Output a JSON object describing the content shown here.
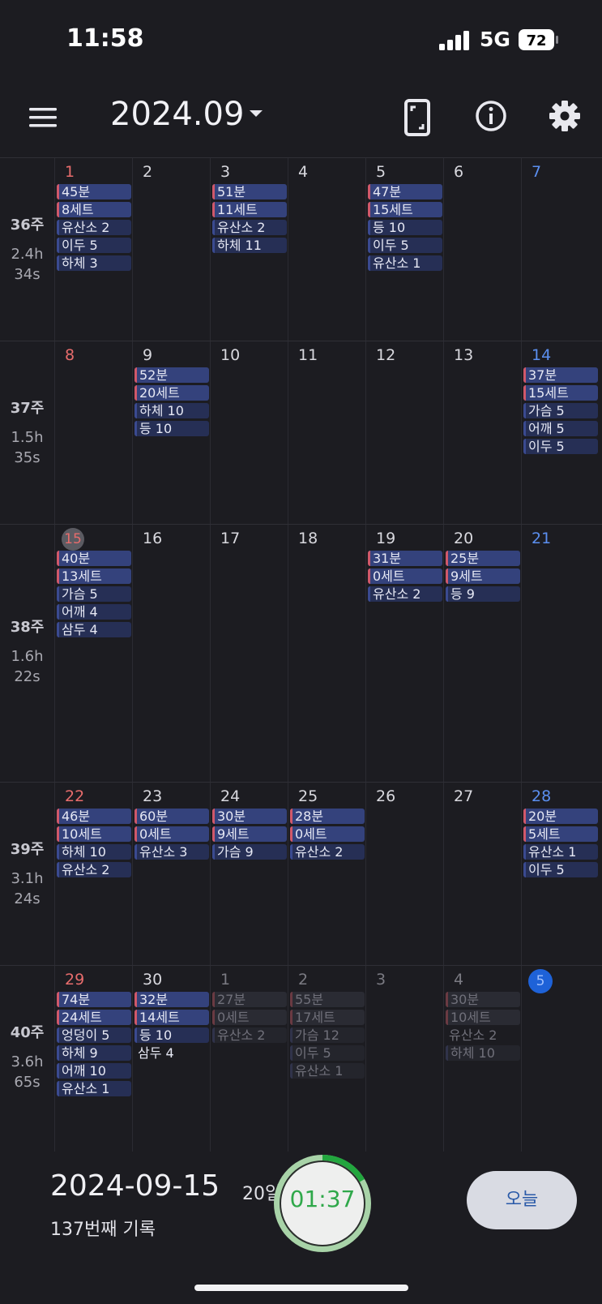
{
  "status_bar": {
    "time": "11:58",
    "network": "5G",
    "battery": "72"
  },
  "header": {
    "month": "2024.09"
  },
  "weeks": [
    {
      "label": "36주",
      "hours": "2.4h",
      "secs": "34s",
      "days": [
        {
          "num": "1",
          "kind": "sun",
          "chips": [
            {
              "text": "45분",
              "t": "t"
            },
            {
              "text": "8세트",
              "t": "t"
            },
            {
              "text": "유산소 2",
              "t": "m"
            },
            {
              "text": "이두 5",
              "t": "m"
            },
            {
              "text": "하체 3",
              "t": "m"
            }
          ]
        },
        {
          "num": "2",
          "kind": "",
          "chips": []
        },
        {
          "num": "3",
          "kind": "",
          "chips": [
            {
              "text": "51분",
              "t": "t"
            },
            {
              "text": "11세트",
              "t": "t"
            },
            {
              "text": "유산소 2",
              "t": "m"
            },
            {
              "text": "하체 11",
              "t": "m"
            }
          ]
        },
        {
          "num": "4",
          "kind": "",
          "chips": []
        },
        {
          "num": "5",
          "kind": "",
          "chips": [
            {
              "text": "47분",
              "t": "t"
            },
            {
              "text": "15세트",
              "t": "t"
            },
            {
              "text": "등 10",
              "t": "m"
            },
            {
              "text": "이두 5",
              "t": "m"
            },
            {
              "text": "유산소 1",
              "t": "m"
            }
          ]
        },
        {
          "num": "6",
          "kind": "",
          "chips": []
        },
        {
          "num": "7",
          "kind": "sat",
          "chips": []
        }
      ]
    },
    {
      "label": "37주",
      "hours": "1.5h",
      "secs": "35s",
      "days": [
        {
          "num": "8",
          "kind": "sun",
          "chips": []
        },
        {
          "num": "9",
          "kind": "",
          "chips": [
            {
              "text": "52분",
              "t": "t"
            },
            {
              "text": "20세트",
              "t": "t"
            },
            {
              "text": "하체 10",
              "t": "m"
            },
            {
              "text": "등 10",
              "t": "m"
            }
          ]
        },
        {
          "num": "10",
          "kind": "",
          "chips": []
        },
        {
          "num": "11",
          "kind": "",
          "chips": []
        },
        {
          "num": "12",
          "kind": "",
          "chips": []
        },
        {
          "num": "13",
          "kind": "",
          "chips": []
        },
        {
          "num": "14",
          "kind": "sat",
          "chips": [
            {
              "text": "37분",
              "t": "t"
            },
            {
              "text": "15세트",
              "t": "t"
            },
            {
              "text": "가슴 5",
              "t": "m"
            },
            {
              "text": "어깨 5",
              "t": "m"
            },
            {
              "text": "이두 5",
              "t": "m"
            }
          ]
        }
      ]
    },
    {
      "label": "38주",
      "hours": "1.6h",
      "secs": "22s",
      "days": [
        {
          "num": "15",
          "kind": "selected",
          "chips": [
            {
              "text": "40분",
              "t": "t"
            },
            {
              "text": "13세트",
              "t": "t"
            },
            {
              "text": "가슴 5",
              "t": "m"
            },
            {
              "text": "어깨 4",
              "t": "m"
            },
            {
              "text": "삼두 4",
              "t": "m"
            }
          ]
        },
        {
          "num": "16",
          "kind": "",
          "chips": []
        },
        {
          "num": "17",
          "kind": "",
          "chips": []
        },
        {
          "num": "18",
          "kind": "",
          "chips": []
        },
        {
          "num": "19",
          "kind": "",
          "chips": [
            {
              "text": "31분",
              "t": "t"
            },
            {
              "text": "0세트",
              "t": "t"
            },
            {
              "text": "유산소 2",
              "t": "m"
            }
          ]
        },
        {
          "num": "20",
          "kind": "",
          "chips": [
            {
              "text": "25분",
              "t": "t"
            },
            {
              "text": "9세트",
              "t": "t"
            },
            {
              "text": "등 9",
              "t": "m"
            }
          ]
        },
        {
          "num": "21",
          "kind": "sat",
          "chips": []
        }
      ]
    },
    {
      "label": "39주",
      "hours": "3.1h",
      "secs": "24s",
      "days": [
        {
          "num": "22",
          "kind": "sun",
          "chips": [
            {
              "text": "46분",
              "t": "t"
            },
            {
              "text": "10세트",
              "t": "t"
            },
            {
              "text": "하체 10",
              "t": "m"
            },
            {
              "text": "유산소 2",
              "t": "m"
            }
          ]
        },
        {
          "num": "23",
          "kind": "",
          "chips": [
            {
              "text": "60분",
              "t": "t"
            },
            {
              "text": "0세트",
              "t": "t"
            },
            {
              "text": "유산소 3",
              "t": "m"
            }
          ]
        },
        {
          "num": "24",
          "kind": "",
          "chips": [
            {
              "text": "30분",
              "t": "t"
            },
            {
              "text": "9세트",
              "t": "t"
            },
            {
              "text": "가슴 9",
              "t": "m"
            }
          ]
        },
        {
          "num": "25",
          "kind": "",
          "chips": [
            {
              "text": "28분",
              "t": "t"
            },
            {
              "text": "0세트",
              "t": "t"
            },
            {
              "text": "유산소 2",
              "t": "m"
            }
          ]
        },
        {
          "num": "26",
          "kind": "",
          "chips": []
        },
        {
          "num": "27",
          "kind": "",
          "chips": []
        },
        {
          "num": "28",
          "kind": "sat",
          "chips": [
            {
              "text": "20분",
              "t": "t"
            },
            {
              "text": "5세트",
              "t": "t"
            },
            {
              "text": "유산소 1",
              "t": "m"
            },
            {
              "text": "이두 5",
              "t": "m"
            }
          ]
        }
      ]
    },
    {
      "label": "40주",
      "hours": "3.6h",
      "secs": "65s",
      "days": [
        {
          "num": "29",
          "kind": "sun",
          "chips": [
            {
              "text": "74분",
              "t": "t"
            },
            {
              "text": "24세트",
              "t": "t"
            },
            {
              "text": "엉덩이 5",
              "t": "m"
            },
            {
              "text": "하체 9",
              "t": "m"
            },
            {
              "text": "어깨 10",
              "t": "m"
            },
            {
              "text": "유산소 1",
              "t": "m"
            }
          ]
        },
        {
          "num": "30",
          "kind": "",
          "chips": [
            {
              "text": "32분",
              "t": "t"
            },
            {
              "text": "14세트",
              "t": "t"
            },
            {
              "text": "등 10",
              "t": "m"
            },
            {
              "text": "삼두 4",
              "t": "plain"
            }
          ]
        },
        {
          "num": "1",
          "kind": "dim",
          "future": true,
          "chips": [
            {
              "text": "27분",
              "t": "t"
            },
            {
              "text": "0세트",
              "t": "t"
            },
            {
              "text": "유산소 2",
              "t": "m"
            }
          ]
        },
        {
          "num": "2",
          "kind": "dim",
          "future": true,
          "chips": [
            {
              "text": "55분",
              "t": "t"
            },
            {
              "text": "17세트",
              "t": "t"
            },
            {
              "text": "가슴 12",
              "t": "m"
            },
            {
              "text": "이두 5",
              "t": "m"
            },
            {
              "text": "유산소 1",
              "t": "m"
            }
          ]
        },
        {
          "num": "3",
          "kind": "dim",
          "future": true,
          "chips": []
        },
        {
          "num": "4",
          "kind": "dim",
          "future": true,
          "chips": [
            {
              "text": "30분",
              "t": "t"
            },
            {
              "text": "10세트",
              "t": "t"
            },
            {
              "text": "유산소 2",
              "t": "plain"
            },
            {
              "text": "하체 10",
              "t": "m"
            }
          ]
        },
        {
          "num": "5",
          "kind": "today",
          "future": true,
          "chips": []
        }
      ]
    }
  ],
  "footer": {
    "selected_date": "2024-09-15",
    "ago": "20일 전",
    "record_count": "137번째 기록",
    "timer": "01:37",
    "today_button": "오늘"
  },
  "colors": {
    "background": "#1c1c21",
    "chip_time": "#34427c",
    "chip_muscle": "#262f55",
    "sunday": "#e76c6c",
    "saturday": "#5b8ff0",
    "timer_green": "#2fa84a"
  },
  "icons": {
    "menu": "menu-icon",
    "phone": "phone-frame-icon",
    "info": "info-icon",
    "settings": "gear-icon"
  }
}
